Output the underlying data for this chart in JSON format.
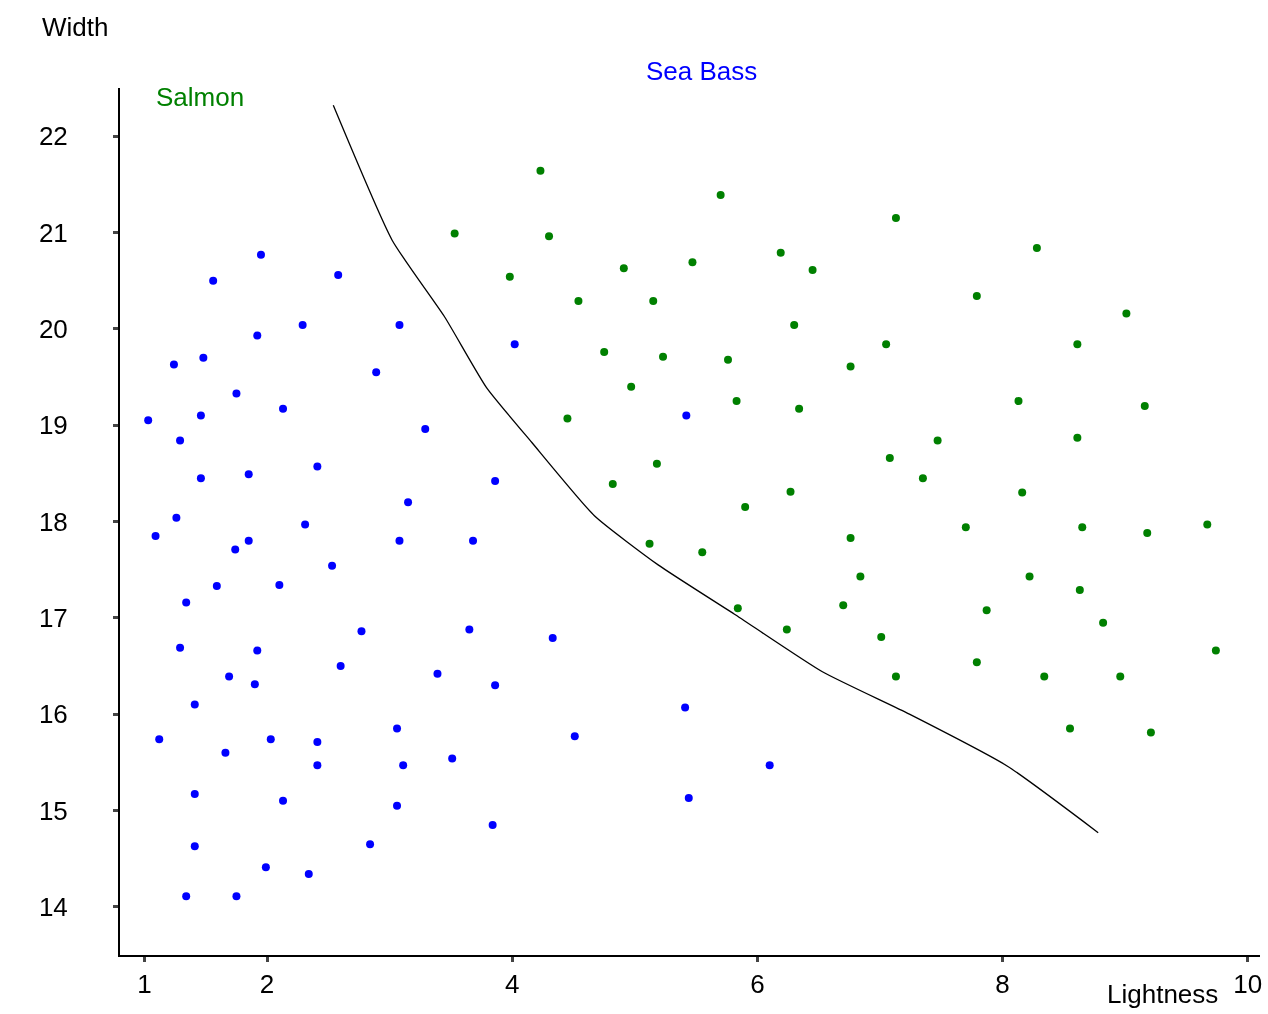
{
  "chart_data": {
    "type": "scatter",
    "xlabel": "Lightness",
    "ylabel": "Width",
    "xlim": [
      0.8,
      10.1
    ],
    "ylim": [
      13.5,
      22.5
    ],
    "xticks": [
      1,
      2,
      4,
      6,
      8,
      10
    ],
    "yticks": [
      14,
      15,
      16,
      17,
      18,
      19,
      20,
      21,
      22
    ],
    "grid": false,
    "marker": "circle",
    "series": [
      {
        "name": "Salmon",
        "color": "#008000",
        "x": [
          4.23,
          5.7,
          3.53,
          4.3,
          7.13,
          8.28,
          3.98,
          4.91,
          5.47,
          6.19,
          6.45,
          4.54,
          5.15,
          7.79,
          9.01,
          6.3,
          4.75,
          5.23,
          5.76,
          7.05,
          6.76,
          8.61,
          4.97,
          4.45,
          5.83,
          6.34,
          8.13,
          9.16,
          7.47,
          8.61,
          7.08,
          7.35,
          4.82,
          5.18,
          5.9,
          6.27,
          8.16,
          6.76,
          7.7,
          8.65,
          9.18,
          9.67,
          5.12,
          5.55,
          6.84,
          8.22,
          8.63,
          5.84,
          6.7,
          7.87,
          8.82,
          6.24,
          7.01,
          7.79,
          9.74,
          7.13,
          8.34,
          8.96,
          8.55,
          9.21
        ],
        "values": [
          21.64,
          21.39,
          20.99,
          20.96,
          21.15,
          20.84,
          20.54,
          20.63,
          20.69,
          20.79,
          20.61,
          20.29,
          20.29,
          20.34,
          20.16,
          20.04,
          19.76,
          19.71,
          19.68,
          19.84,
          19.61,
          19.84,
          19.4,
          19.07,
          19.25,
          19.17,
          19.25,
          19.2,
          18.84,
          18.87,
          18.66,
          18.45,
          18.39,
          18.6,
          18.15,
          18.31,
          18.3,
          17.83,
          17.94,
          17.94,
          17.88,
          17.97,
          17.77,
          17.68,
          17.43,
          17.43,
          17.29,
          17.1,
          17.13,
          17.08,
          16.95,
          16.88,
          16.8,
          16.54,
          16.66,
          16.39,
          16.39,
          16.39,
          15.85,
          15.81
        ]
      },
      {
        "name": "Sea Bass",
        "color": "#0000ff",
        "x": [
          1.03,
          1.24,
          1.48,
          1.56,
          1.95,
          2.58,
          1.92,
          2.29,
          3.08,
          2.89,
          4.02,
          1.75,
          2.13,
          1.46,
          1.29,
          3.29,
          1.46,
          1.85,
          2.41,
          3.15,
          3.86,
          5.42,
          1.26,
          1.09,
          2.31,
          1.85,
          1.74,
          3.08,
          3.68,
          2.53,
          1.59,
          2.1,
          1.34,
          2.77,
          3.65,
          4.33,
          1.29,
          1.92,
          1.69,
          2.6,
          3.39,
          1.9,
          3.86,
          1.41,
          5.41,
          1.12,
          1.66,
          2.03,
          2.41,
          3.06,
          4.51,
          2.41,
          3.11,
          3.51,
          6.1,
          1.41,
          2.13,
          3.06,
          5.44,
          3.84,
          1.41,
          2.84,
          1.99,
          2.34,
          1.34,
          1.75
        ],
        "values": [
          19.05,
          19.63,
          19.7,
          20.5,
          20.77,
          20.56,
          19.93,
          20.04,
          20.04,
          19.55,
          19.84,
          19.33,
          19.17,
          19.1,
          18.84,
          18.96,
          18.45,
          18.49,
          18.57,
          18.2,
          18.42,
          19.1,
          18.04,
          17.85,
          17.97,
          17.8,
          17.71,
          17.8,
          17.8,
          17.54,
          17.33,
          17.34,
          17.16,
          16.86,
          16.88,
          16.79,
          16.69,
          16.66,
          16.39,
          16.5,
          16.42,
          16.31,
          16.3,
          16.1,
          16.07,
          15.74,
          15.6,
          15.74,
          15.71,
          15.85,
          15.77,
          15.47,
          15.47,
          15.54,
          15.47,
          15.17,
          15.1,
          15.05,
          15.13,
          14.85,
          14.63,
          14.65,
          14.41,
          14.34,
          14.11,
          14.11
        ]
      },
      {
        "type": "line",
        "color": "#000000",
        "marker": "none",
        "x": [
          2.54,
          3.02,
          3.45,
          3.79,
          4.16,
          4.67,
          5.19,
          5.81,
          6.53,
          7.24,
          8.04,
          8.78
        ],
        "values": [
          22.32,
          20.92,
          20.12,
          19.39,
          18.82,
          18.06,
          17.55,
          17.04,
          16.44,
          16.0,
          15.46,
          14.77
        ]
      }
    ]
  }
}
